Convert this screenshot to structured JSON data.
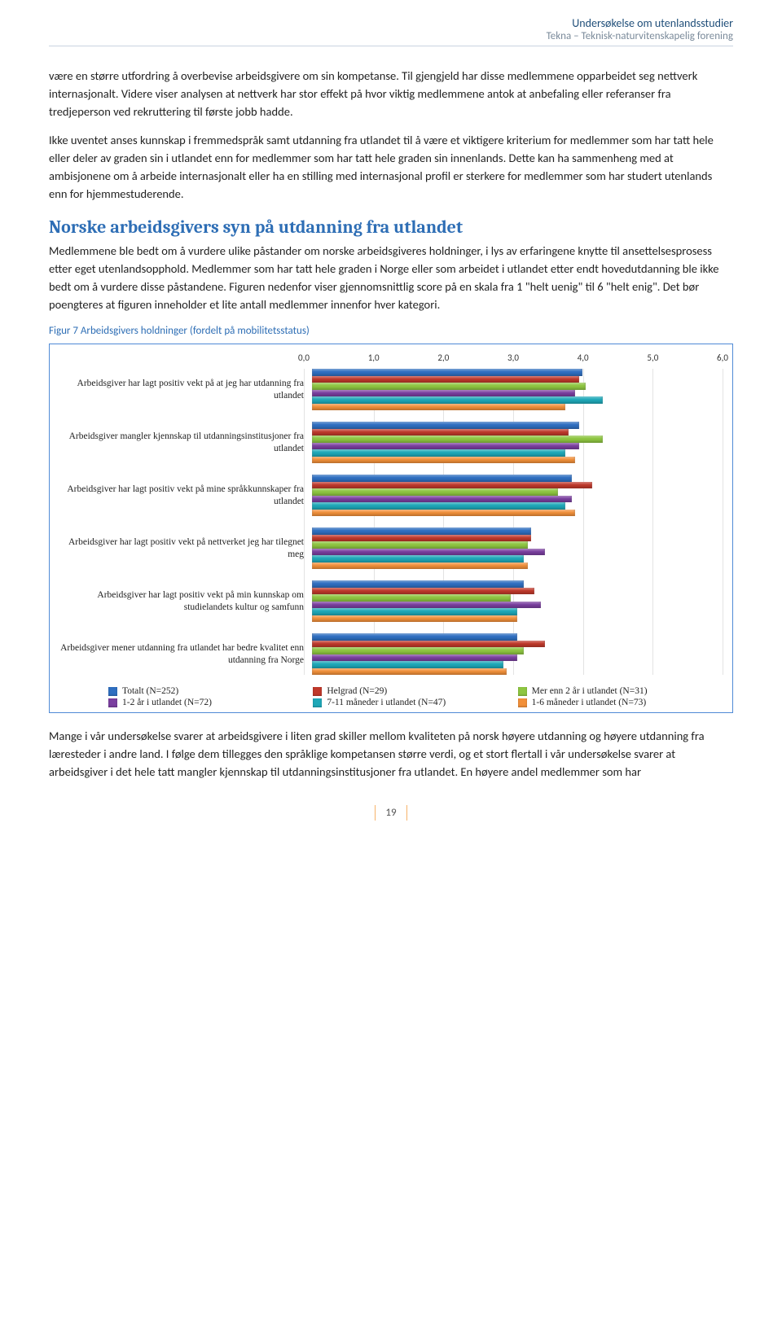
{
  "header": {
    "line1": "Undersøkelse om utenlandsstudier",
    "line2": "Tekna – Teknisk-naturvitenskapelig forening"
  },
  "paragraphs": {
    "p1": "være en større utfordring å overbevise arbeidsgivere om sin kompetanse. Til gjengjeld har disse medlemmene opparbeidet seg nettverk internasjonalt. Videre viser analysen at nettverk har stor effekt på hvor viktig medlemmene antok at anbefaling eller referanser fra tredjeperson ved rekruttering til første jobb hadde.",
    "p2": "Ikke uventet anses kunnskap i fremmedspråk samt utdanning fra utlandet til å være et viktigere kriterium for medlemmer som har tatt hele eller deler av graden sin i utlandet enn for medlemmer som har tatt hele graden sin innenlands. Dette kan ha sammenheng med at ambisjonene om å arbeide internasjonalt eller ha en stilling med internasjonal profil er sterkere for medlemmer som har studert utenlands enn for hjemmestuderende.",
    "section_title": "Norske arbeidsgivers syn på utdanning fra utlandet",
    "p3": "Medlemmene ble bedt om å vurdere ulike påstander om norske arbeidsgiveres holdninger, i lys av erfaringene knytte til ansettelsesprosess etter eget utenlandsopphold. Medlemmer som har tatt hele graden i Norge eller som arbeidet i utlandet etter endt hovedutdanning ble ikke bedt om å vurdere disse påstandene. Figuren nedenfor viser gjennomsnittlig score på en skala fra 1 \"helt uenig\" til 6 \"helt enig\". Det bør poengteres at figuren inneholder et lite antall medlemmer innenfor hver kategori.",
    "figure_caption": "Figur 7 Arbeidsgivers holdninger (fordelt på mobilitetsstatus)",
    "p4": "Mange i vår undersøkelse svarer at arbeidsgivere i liten grad skiller mellom kvaliteten på norsk høyere utdanning og høyere utdanning fra læresteder i andre land. I følge dem tillegges den språklige kompetansen større verdi, og et stort flertall i vår undersøkelse svarer at arbeidsgiver i det hele tatt mangler kjennskap til utdanningsinstitusjoner fra utlandet. En høyere andel medlemmer som har"
  },
  "chart": {
    "xmin": 0.0,
    "xmax": 6.0,
    "ticks": [
      "0,0",
      "1,0",
      "2,0",
      "3,0",
      "4,0",
      "5,0",
      "6,0"
    ],
    "series_colors": [
      "#2f6fc1",
      "#c0392b",
      "#8ec641",
      "#7b3fa0",
      "#1fa8b8",
      "#f2903a"
    ],
    "series_labels": [
      "Totalt (N=252)",
      "Helgrad (N=29)",
      "Mer enn 2 år i utlandet (N=31)",
      "1-2 år i utlandet (N=72)",
      "7-11 måneder i utlandet (N=47)",
      "1-6 måneder i utlandet (N=73)"
    ],
    "groups": [
      {
        "label": "Arbeidsgiver har lagt positiv vekt på at jeg har utdanning fra utlandet",
        "values": [
          3.95,
          3.9,
          4.0,
          3.85,
          4.25,
          3.7
        ]
      },
      {
        "label": "Arbeidsgiver mangler kjennskap til utdanningsinstitusjoner fra utlandet",
        "values": [
          3.9,
          3.75,
          4.25,
          3.9,
          3.7,
          3.85
        ]
      },
      {
        "label": "Arbeidsgiver har lagt positiv vekt på mine språkkunnskaper fra utlandet",
        "values": [
          3.8,
          4.1,
          3.6,
          3.8,
          3.7,
          3.85
        ]
      },
      {
        "label": "Arbeidsgiver har lagt positiv vekt på nettverket jeg har tilegnet meg",
        "values": [
          3.2,
          3.2,
          3.15,
          3.4,
          3.1,
          3.15
        ]
      },
      {
        "label": "Arbeidsgiver har lagt positiv vekt på min kunnskap om studielandets kultur og samfunn",
        "values": [
          3.1,
          3.25,
          2.9,
          3.35,
          3.0,
          3.0
        ]
      },
      {
        "label": "Arbeidsgiver mener utdanning fra utlandet har bedre kvalitet enn utdanning fra Norge",
        "values": [
          3.0,
          3.4,
          3.1,
          3.0,
          2.8,
          2.85
        ]
      }
    ]
  },
  "page_number": "19"
}
